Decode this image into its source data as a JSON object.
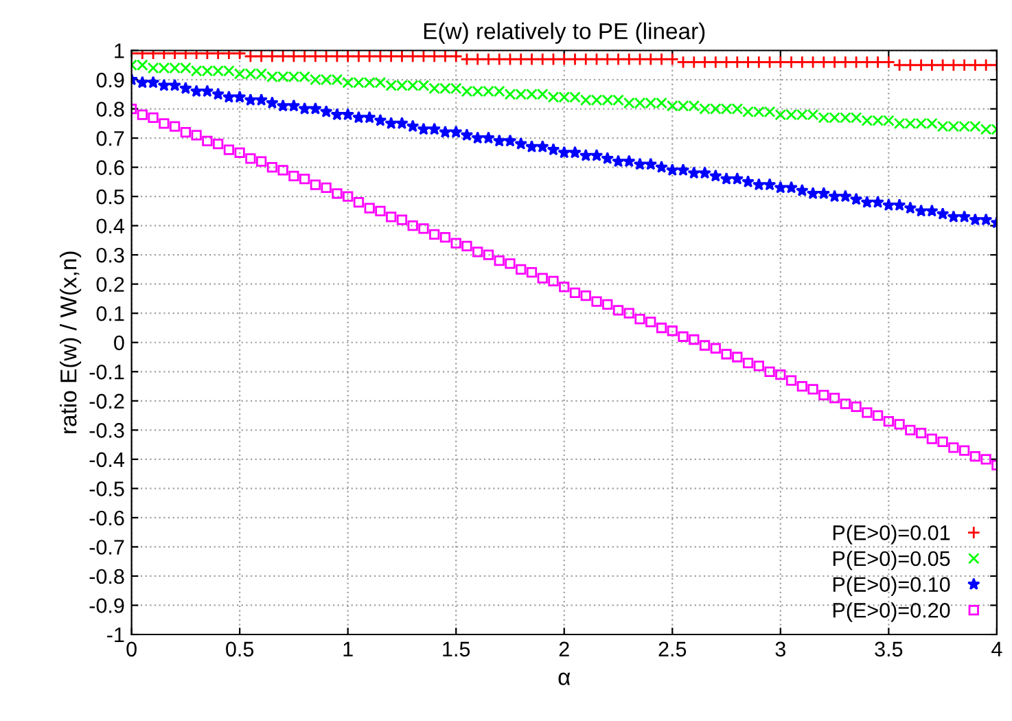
{
  "chart_data": {
    "type": "scatter",
    "title": "E(w) relatively to PE (linear)",
    "xlabel": "α",
    "ylabel": "ratio E(w) / W(x,n)",
    "x": [
      0,
      0.05,
      0.1,
      0.15,
      0.2,
      0.25,
      0.3,
      0.35,
      0.4,
      0.45,
      0.5,
      0.55,
      0.6,
      0.65,
      0.7,
      0.75,
      0.8,
      0.85,
      0.9,
      0.95,
      1,
      1.05,
      1.1,
      1.15,
      1.2,
      1.25,
      1.3,
      1.35,
      1.4,
      1.45,
      1.5,
      1.55,
      1.6,
      1.65,
      1.7,
      1.75,
      1.8,
      1.85,
      1.9,
      1.95,
      2,
      2.05,
      2.1,
      2.15,
      2.2,
      2.25,
      2.3,
      2.35,
      2.4,
      2.45,
      2.5,
      2.55,
      2.6,
      2.65,
      2.7,
      2.75,
      2.8,
      2.85,
      2.9,
      2.95,
      3,
      3.05,
      3.1,
      3.15,
      3.2,
      3.25,
      3.3,
      3.35,
      3.4,
      3.45,
      3.5,
      3.55,
      3.6,
      3.65,
      3.7,
      3.75,
      3.8,
      3.85,
      3.9,
      3.95,
      4
    ],
    "series": [
      {
        "name": "P(E>0)=0.01",
        "color": "#ff0000",
        "marker": "cross",
        "values": [
          0.99,
          0.99,
          0.99,
          0.99,
          0.99,
          0.99,
          0.99,
          0.99,
          0.99,
          0.99,
          0.99,
          0.98,
          0.98,
          0.98,
          0.98,
          0.98,
          0.98,
          0.98,
          0.98,
          0.98,
          0.98,
          0.98,
          0.98,
          0.98,
          0.98,
          0.98,
          0.98,
          0.98,
          0.98,
          0.98,
          0.98,
          0.97,
          0.97,
          0.97,
          0.97,
          0.97,
          0.97,
          0.97,
          0.97,
          0.97,
          0.97,
          0.97,
          0.97,
          0.97,
          0.97,
          0.97,
          0.97,
          0.97,
          0.97,
          0.97,
          0.97,
          0.96,
          0.96,
          0.96,
          0.96,
          0.96,
          0.96,
          0.96,
          0.96,
          0.96,
          0.96,
          0.96,
          0.96,
          0.96,
          0.96,
          0.96,
          0.96,
          0.96,
          0.96,
          0.96,
          0.96,
          0.95,
          0.95,
          0.95,
          0.95,
          0.95,
          0.95,
          0.95,
          0.95,
          0.95,
          0.95
        ]
      },
      {
        "name": "P(E>0)=0.05",
        "color": "#00ff00",
        "marker": "x",
        "values": [
          0.95,
          0.95,
          0.94,
          0.94,
          0.94,
          0.94,
          0.93,
          0.93,
          0.93,
          0.93,
          0.92,
          0.92,
          0.92,
          0.91,
          0.91,
          0.91,
          0.91,
          0.9,
          0.9,
          0.9,
          0.89,
          0.89,
          0.89,
          0.89,
          0.88,
          0.88,
          0.88,
          0.88,
          0.87,
          0.87,
          0.87,
          0.86,
          0.86,
          0.86,
          0.86,
          0.85,
          0.85,
          0.85,
          0.85,
          0.84,
          0.84,
          0.84,
          0.83,
          0.83,
          0.83,
          0.83,
          0.82,
          0.82,
          0.82,
          0.82,
          0.81,
          0.81,
          0.81,
          0.8,
          0.8,
          0.8,
          0.8,
          0.79,
          0.79,
          0.79,
          0.78,
          0.78,
          0.78,
          0.78,
          0.77,
          0.77,
          0.77,
          0.77,
          0.76,
          0.76,
          0.76,
          0.75,
          0.75,
          0.75,
          0.75,
          0.74,
          0.74,
          0.74,
          0.74,
          0.73,
          0.73
        ]
      },
      {
        "name": "P(E>0)=0.10",
        "color": "#0000ff",
        "marker": "star",
        "values": [
          0.9,
          0.89,
          0.89,
          0.88,
          0.88,
          0.87,
          0.86,
          0.86,
          0.85,
          0.84,
          0.84,
          0.83,
          0.83,
          0.82,
          0.81,
          0.81,
          0.8,
          0.8,
          0.79,
          0.78,
          0.78,
          0.77,
          0.77,
          0.76,
          0.75,
          0.75,
          0.74,
          0.73,
          0.73,
          0.72,
          0.72,
          0.71,
          0.7,
          0.7,
          0.69,
          0.69,
          0.68,
          0.67,
          0.67,
          0.66,
          0.65,
          0.65,
          0.64,
          0.64,
          0.63,
          0.62,
          0.62,
          0.61,
          0.61,
          0.6,
          0.59,
          0.59,
          0.58,
          0.58,
          0.57,
          0.56,
          0.56,
          0.55,
          0.54,
          0.54,
          0.53,
          0.53,
          0.52,
          0.51,
          0.51,
          0.5,
          0.5,
          0.49,
          0.48,
          0.48,
          0.47,
          0.47,
          0.46,
          0.45,
          0.45,
          0.44,
          0.43,
          0.43,
          0.42,
          0.42,
          0.41
        ]
      },
      {
        "name": "P(E>0)=0.20",
        "color": "#ff00ff",
        "marker": "square",
        "values": [
          0.8,
          0.78,
          0.77,
          0.75,
          0.74,
          0.72,
          0.71,
          0.69,
          0.68,
          0.66,
          0.65,
          0.63,
          0.62,
          0.6,
          0.59,
          0.57,
          0.56,
          0.54,
          0.53,
          0.51,
          0.5,
          0.48,
          0.46,
          0.45,
          0.43,
          0.42,
          0.4,
          0.39,
          0.37,
          0.36,
          0.34,
          0.33,
          0.31,
          0.3,
          0.28,
          0.27,
          0.25,
          0.24,
          0.22,
          0.21,
          0.19,
          0.17,
          0.16,
          0.14,
          0.13,
          0.11,
          0.1,
          0.08,
          0.07,
          0.05,
          0.04,
          0.02,
          0.01,
          -0.01,
          -0.02,
          -0.04,
          -0.05,
          -0.07,
          -0.08,
          -0.1,
          -0.11,
          -0.13,
          -0.15,
          -0.16,
          -0.18,
          -0.19,
          -0.21,
          -0.22,
          -0.24,
          -0.25,
          -0.27,
          -0.28,
          -0.3,
          -0.31,
          -0.33,
          -0.34,
          -0.36,
          -0.37,
          -0.39,
          -0.4,
          -0.42
        ]
      }
    ],
    "xlim": [
      0,
      4
    ],
    "xticks": [
      0,
      0.5,
      1,
      1.5,
      2,
      2.5,
      3,
      3.5,
      4
    ],
    "ylim": [
      -1,
      1
    ],
    "yticks": [
      -1,
      -0.9,
      -0.8,
      -0.7,
      -0.6,
      -0.5,
      -0.4,
      -0.3,
      -0.2,
      -0.1,
      0,
      0.1,
      0.2,
      0.3,
      0.4,
      0.5,
      0.6,
      0.7,
      0.8,
      0.9,
      1
    ],
    "grid": true,
    "legend": "bottom right"
  }
}
